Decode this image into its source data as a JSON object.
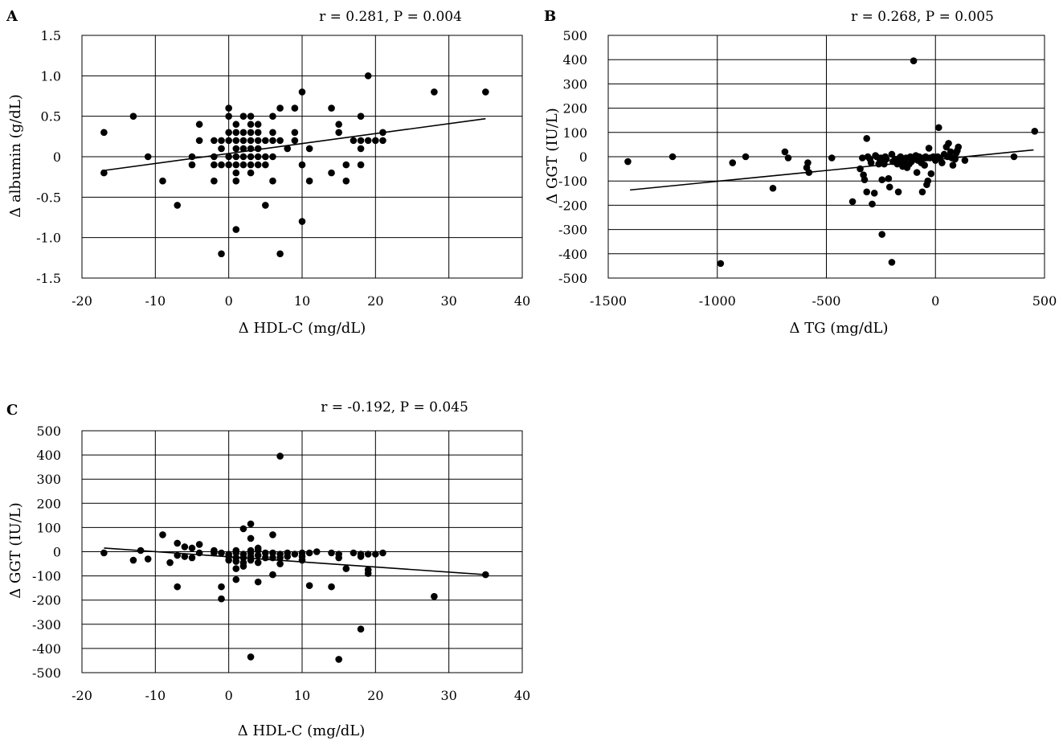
{
  "chart_data": [
    {
      "panel": "A",
      "type": "scatter",
      "annotation": "r = 0.281, P = 0.004",
      "xlabel": "Δ HDL-C (mg/dL)",
      "ylabel": "Δ albumin (g/dL)",
      "xlim": [
        -20,
        40
      ],
      "ylim": [
        -1.5,
        1.5
      ],
      "xticks": [
        -20,
        -10,
        0,
        10,
        20,
        30,
        40
      ],
      "yticks": [
        -1.5,
        -1.0,
        -0.5,
        0,
        0.5,
        1.0,
        1.5
      ],
      "xtick_labels": [
        "-20",
        "-10",
        "0",
        "10",
        "20",
        "30",
        "40"
      ],
      "ytick_labels": [
        "-1.5",
        "-1.0",
        "-0.5",
        "0",
        "0.5",
        "1.0",
        "1.5"
      ],
      "trendline": [
        [
          -17,
          -0.17
        ],
        [
          35,
          0.47
        ]
      ],
      "points": [
        [
          -17,
          0.3
        ],
        [
          -17,
          -0.2
        ],
        [
          -13,
          0.5
        ],
        [
          -11,
          0
        ],
        [
          -9,
          -0.3
        ],
        [
          -7,
          -0.6
        ],
        [
          -5,
          0
        ],
        [
          -5,
          -0.1
        ],
        [
          -4,
          0.2
        ],
        [
          -4,
          0.4
        ],
        [
          -2,
          0.2
        ],
        [
          -2,
          0
        ],
        [
          -2,
          -0.1
        ],
        [
          -2,
          -0.3
        ],
        [
          -1,
          0.2
        ],
        [
          -1,
          0.1
        ],
        [
          -1,
          -0.1
        ],
        [
          -1,
          -1.2
        ],
        [
          0,
          0.6
        ],
        [
          0,
          0.5
        ],
        [
          0,
          0.3
        ],
        [
          0,
          0.2
        ],
        [
          0,
          0
        ],
        [
          0,
          -0.1
        ],
        [
          1,
          0.4
        ],
        [
          1,
          0.3
        ],
        [
          1,
          0.2
        ],
        [
          1,
          0.1
        ],
        [
          1,
          0
        ],
        [
          1,
          -0.1
        ],
        [
          1,
          -0.2
        ],
        [
          1,
          -0.3
        ],
        [
          1,
          -0.9
        ],
        [
          2,
          0.5
        ],
        [
          2,
          0.3
        ],
        [
          2,
          0.2
        ],
        [
          2,
          0.1
        ],
        [
          2,
          0
        ],
        [
          2,
          -0.1
        ],
        [
          3,
          0.5
        ],
        [
          3,
          0.4
        ],
        [
          3,
          0.3
        ],
        [
          3,
          0.2
        ],
        [
          3,
          0.1
        ],
        [
          3,
          0
        ],
        [
          3,
          -0.1
        ],
        [
          3,
          -0.2
        ],
        [
          4,
          0.4
        ],
        [
          4,
          0.3
        ],
        [
          4,
          0.2
        ],
        [
          4,
          0.1
        ],
        [
          4,
          0
        ],
        [
          4,
          -0.1
        ],
        [
          5,
          0.2
        ],
        [
          5,
          0
        ],
        [
          5,
          -0.1
        ],
        [
          5,
          -0.6
        ],
        [
          6,
          0.5
        ],
        [
          6,
          0.3
        ],
        [
          6,
          0.2
        ],
        [
          6,
          0
        ],
        [
          6,
          -0.3
        ],
        [
          7,
          0.6
        ],
        [
          7,
          0.2
        ],
        [
          7,
          -1.2
        ],
        [
          8,
          0.1
        ],
        [
          9,
          0.6
        ],
        [
          9,
          0.3
        ],
        [
          9,
          0.2
        ],
        [
          10,
          0.8
        ],
        [
          10,
          -0.1
        ],
        [
          10,
          -0.8
        ],
        [
          11,
          0.1
        ],
        [
          11,
          -0.3
        ],
        [
          14,
          0.6
        ],
        [
          14,
          -0.2
        ],
        [
          15,
          0.4
        ],
        [
          15,
          0.3
        ],
        [
          16,
          -0.1
        ],
        [
          16,
          -0.3
        ],
        [
          17,
          0.2
        ],
        [
          18,
          0.5
        ],
        [
          18,
          0.2
        ],
        [
          18,
          0.1
        ],
        [
          18,
          -0.1
        ],
        [
          19,
          1.0
        ],
        [
          19,
          0.2
        ],
        [
          20,
          0.2
        ],
        [
          21,
          0.2
        ],
        [
          21,
          0.3
        ],
        [
          28,
          0.8
        ],
        [
          35,
          0.8
        ]
      ]
    },
    {
      "panel": "B",
      "type": "scatter",
      "annotation": "r = 0.268, P = 0.005",
      "xlabel": "Δ TG (mg/dL)",
      "ylabel": "Δ GGT (IU/L)",
      "xlim": [
        -1500,
        500
      ],
      "ylim": [
        -500,
        500
      ],
      "xticks": [
        -1500,
        -1000,
        -500,
        0,
        500
      ],
      "yticks": [
        -500,
        -400,
        -300,
        -200,
        -100,
        0,
        100,
        200,
        300,
        400,
        500
      ],
      "xtick_labels": [
        "-1500",
        "-1000",
        "-500",
        "0",
        "500"
      ],
      "ytick_labels": [
        "-500",
        "-400",
        "-300",
        "-200",
        "-100",
        "0",
        "100",
        "200",
        "300",
        "400",
        "500"
      ],
      "trendline": [
        [
          -1400,
          -137
        ],
        [
          450,
          28
        ]
      ],
      "points": [
        [
          -1410,
          -20
        ],
        [
          -1205,
          0
        ],
        [
          -985,
          -440
        ],
        [
          -930,
          -25
        ],
        [
          -870,
          0
        ],
        [
          -745,
          -130
        ],
        [
          -690,
          20
        ],
        [
          -675,
          -5
        ],
        [
          -590,
          -45
        ],
        [
          -585,
          -25
        ],
        [
          -580,
          -65
        ],
        [
          -475,
          -5
        ],
        [
          -380,
          -185
        ],
        [
          -345,
          -50
        ],
        [
          -335,
          -5
        ],
        [
          -330,
          -75
        ],
        [
          -325,
          -95
        ],
        [
          -315,
          -145
        ],
        [
          -315,
          75
        ],
        [
          -310,
          0
        ],
        [
          -300,
          -10
        ],
        [
          -295,
          -25
        ],
        [
          -290,
          -195
        ],
        [
          -280,
          -150
        ],
        [
          -275,
          5
        ],
        [
          -270,
          0
        ],
        [
          -260,
          -30
        ],
        [
          -255,
          -10
        ],
        [
          -250,
          -5
        ],
        [
          -245,
          -320
        ],
        [
          -245,
          -95
        ],
        [
          -240,
          -20
        ],
        [
          -235,
          -30
        ],
        [
          -230,
          0
        ],
        [
          -225,
          -10
        ],
        [
          -215,
          -90
        ],
        [
          -210,
          -125
        ],
        [
          -200,
          -435
        ],
        [
          -200,
          10
        ],
        [
          -195,
          -20
        ],
        [
          -185,
          -10
        ],
        [
          -175,
          -30
        ],
        [
          -170,
          -145
        ],
        [
          -165,
          -5
        ],
        [
          -160,
          0
        ],
        [
          -155,
          -25
        ],
        [
          -150,
          -40
        ],
        [
          -145,
          -20
        ],
        [
          -140,
          -10
        ],
        [
          -135,
          -5
        ],
        [
          -130,
          -45
        ],
        [
          -120,
          -30
        ],
        [
          -115,
          0
        ],
        [
          -110,
          -20
        ],
        [
          -100,
          395
        ],
        [
          -95,
          -10
        ],
        [
          -90,
          5
        ],
        [
          -85,
          -65
        ],
        [
          -80,
          -15
        ],
        [
          -75,
          0
        ],
        [
          -65,
          -25
        ],
        [
          -60,
          -145
        ],
        [
          -55,
          -5
        ],
        [
          -50,
          -35
        ],
        [
          -45,
          0
        ],
        [
          -40,
          -115
        ],
        [
          -35,
          -100
        ],
        [
          -30,
          35
        ],
        [
          -25,
          -5
        ],
        [
          -20,
          -70
        ],
        [
          -10,
          0
        ],
        [
          0,
          -15
        ],
        [
          10,
          0
        ],
        [
          15,
          120
        ],
        [
          20,
          -5
        ],
        [
          30,
          -25
        ],
        [
          40,
          10
        ],
        [
          50,
          40
        ],
        [
          55,
          0
        ],
        [
          60,
          55
        ],
        [
          70,
          20
        ],
        [
          75,
          -5
        ],
        [
          80,
          -35
        ],
        [
          90,
          -10
        ],
        [
          95,
          15
        ],
        [
          100,
          25
        ],
        [
          105,
          40
        ],
        [
          135,
          -15
        ],
        [
          360,
          0
        ],
        [
          455,
          105
        ]
      ]
    },
    {
      "panel": "C",
      "type": "scatter",
      "annotation": "r = -0.192, P = 0.045",
      "xlabel": "Δ HDL-C (mg/dL)",
      "ylabel": "Δ GGT (IU/L)",
      "xlim": [
        -20,
        40
      ],
      "ylim": [
        -500,
        500
      ],
      "xticks": [
        -20,
        -10,
        0,
        10,
        20,
        30,
        40
      ],
      "yticks": [
        -500,
        -400,
        -300,
        -200,
        -100,
        0,
        100,
        200,
        300,
        400,
        500
      ],
      "xtick_labels": [
        "-20",
        "-10",
        "0",
        "10",
        "20",
        "30",
        "40"
      ],
      "ytick_labels": [
        "-500",
        "-400",
        "-300",
        "-200",
        "-100",
        "0",
        "100",
        "200",
        "300",
        "400",
        "500"
      ],
      "trendline": [
        [
          -17,
          15
        ],
        [
          35,
          -95
        ]
      ],
      "points": [
        [
          -17,
          -5
        ],
        [
          -13,
          -35
        ],
        [
          -12,
          5
        ],
        [
          -11,
          -30
        ],
        [
          -9,
          70
        ],
        [
          -8,
          -45
        ],
        [
          -7,
          35
        ],
        [
          -7,
          -15
        ],
        [
          -7,
          -145
        ],
        [
          -6,
          20
        ],
        [
          -6,
          -20
        ],
        [
          -5,
          15
        ],
        [
          -5,
          -25
        ],
        [
          -4,
          30
        ],
        [
          -4,
          -5
        ],
        [
          -2,
          5
        ],
        [
          -2,
          -5
        ],
        [
          -1,
          -5
        ],
        [
          -1,
          -145
        ],
        [
          -1,
          -195
        ],
        [
          0,
          -10
        ],
        [
          0,
          -20
        ],
        [
          0,
          -35
        ],
        [
          1,
          5
        ],
        [
          1,
          -5
        ],
        [
          1,
          -25
        ],
        [
          1,
          -40
        ],
        [
          1,
          -70
        ],
        [
          1,
          -115
        ],
        [
          2,
          95
        ],
        [
          2,
          -10
        ],
        [
          2,
          -25
        ],
        [
          2,
          -45
        ],
        [
          2,
          -60
        ],
        [
          3,
          115
        ],
        [
          3,
          55
        ],
        [
          3,
          5
        ],
        [
          3,
          -5
        ],
        [
          3,
          -20
        ],
        [
          3,
          -35
        ],
        [
          3,
          -435
        ],
        [
          4,
          15
        ],
        [
          4,
          5
        ],
        [
          4,
          -15
        ],
        [
          4,
          -45
        ],
        [
          4,
          -125
        ],
        [
          5,
          -5
        ],
        [
          5,
          -25
        ],
        [
          6,
          70
        ],
        [
          6,
          -5
        ],
        [
          6,
          -25
        ],
        [
          6,
          -95
        ],
        [
          7,
          395
        ],
        [
          7,
          -10
        ],
        [
          7,
          -25
        ],
        [
          7,
          -50
        ],
        [
          8,
          -5
        ],
        [
          8,
          -20
        ],
        [
          9,
          -10
        ],
        [
          10,
          -5
        ],
        [
          10,
          -20
        ],
        [
          10,
          -35
        ],
        [
          11,
          -5
        ],
        [
          11,
          -140
        ],
        [
          12,
          0
        ],
        [
          14,
          -5
        ],
        [
          14,
          -145
        ],
        [
          15,
          -10
        ],
        [
          15,
          -25
        ],
        [
          15,
          -445
        ],
        [
          16,
          -70
        ],
        [
          17,
          -5
        ],
        [
          18,
          -10
        ],
        [
          18,
          -20
        ],
        [
          18,
          -320
        ],
        [
          19,
          -10
        ],
        [
          19,
          -75
        ],
        [
          19,
          -90
        ],
        [
          20,
          -10
        ],
        [
          21,
          -5
        ],
        [
          28,
          -185
        ],
        [
          35,
          -95
        ]
      ]
    }
  ]
}
